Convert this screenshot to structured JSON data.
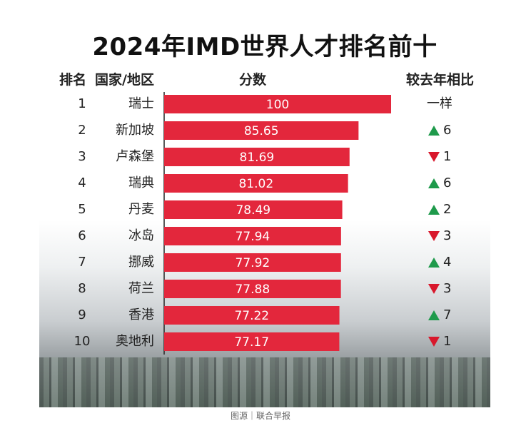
{
  "title": "2024年IMD世界人才排名前十",
  "headers": {
    "rank": "排名",
    "country": "国家/地区",
    "score": "分数",
    "change": "较去年相比"
  },
  "source": "图源｜联合早报",
  "colors": {
    "bar": "#e3273c",
    "bar_text": "#ffffff",
    "up": "#1e9a4b",
    "down": "#d8182c",
    "axis": "#222222"
  },
  "chart_data": {
    "type": "bar",
    "orientation": "horizontal",
    "title": "2024年IMD世界人才排名前十",
    "xlabel": "分数",
    "ylabel": "国家/地区",
    "xlim": [
      0,
      100
    ],
    "grid": false,
    "rows": [
      {
        "rank": "1",
        "name": "瑞士",
        "value": 100,
        "value_label": "100",
        "change_dir": "same",
        "change_text": "一样"
      },
      {
        "rank": "2",
        "name": "新加坡",
        "value": 85.65,
        "value_label": "85.65",
        "change_dir": "up",
        "change_text": "6"
      },
      {
        "rank": "3",
        "name": "卢森堡",
        "value": 81.69,
        "value_label": "81.69",
        "change_dir": "down",
        "change_text": "1"
      },
      {
        "rank": "4",
        "name": "瑞典",
        "value": 81.02,
        "value_label": "81.02",
        "change_dir": "up",
        "change_text": "6"
      },
      {
        "rank": "5",
        "name": "丹麦",
        "value": 78.49,
        "value_label": "78.49",
        "change_dir": "up",
        "change_text": "2"
      },
      {
        "rank": "6",
        "name": "冰岛",
        "value": 77.94,
        "value_label": "77.94",
        "change_dir": "down",
        "change_text": "3"
      },
      {
        "rank": "7",
        "name": "挪威",
        "value": 77.92,
        "value_label": "77.92",
        "change_dir": "up",
        "change_text": "4"
      },
      {
        "rank": "8",
        "name": "荷兰",
        "value": 77.88,
        "value_label": "77.88",
        "change_dir": "down",
        "change_text": "3"
      },
      {
        "rank": "9",
        "name": "香港",
        "value": 77.22,
        "value_label": "77.22",
        "change_dir": "up",
        "change_text": "7"
      },
      {
        "rank": "10",
        "name": "奥地利",
        "value": 77.17,
        "value_label": "77.17",
        "change_dir": "down",
        "change_text": "1"
      }
    ]
  }
}
